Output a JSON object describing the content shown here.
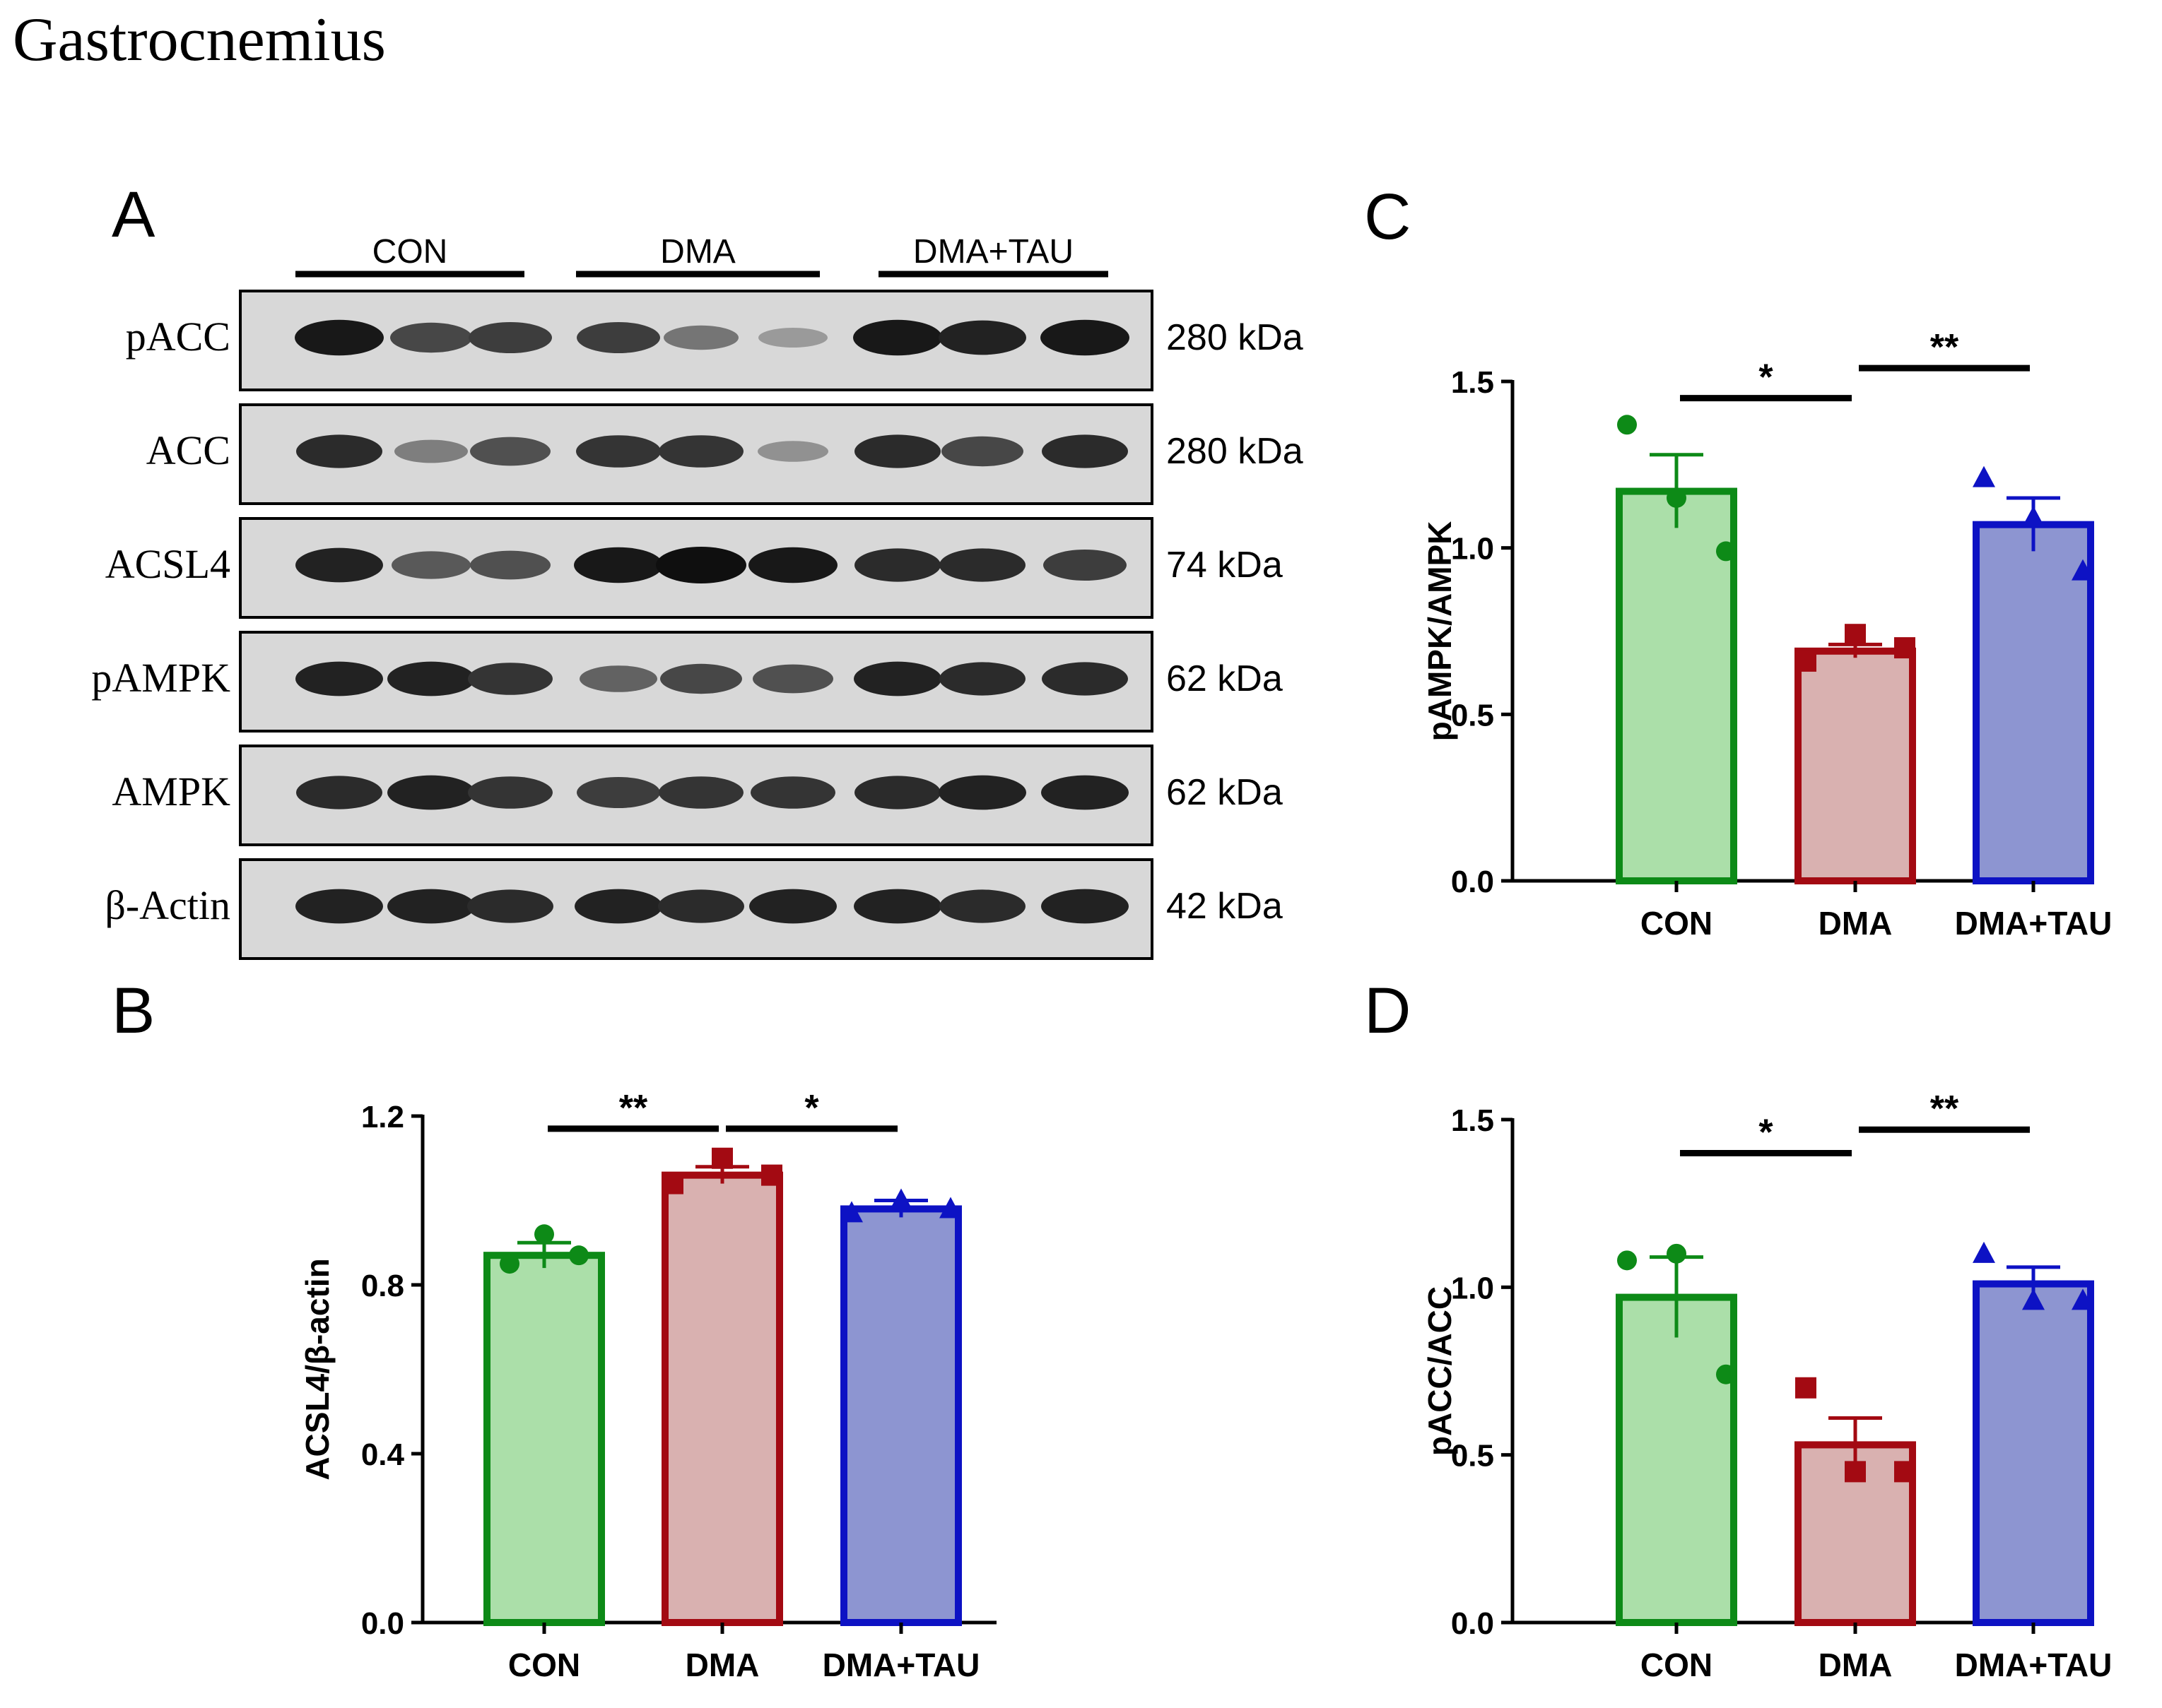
{
  "figure_title": "Gastrocnemius",
  "panel_a": {
    "label": "A",
    "groups": [
      "CON",
      "DMA",
      "DMA+TAU"
    ],
    "blots": [
      {
        "protein": "pACC",
        "size": "280 kDa",
        "intensities": [
          0.95,
          0.7,
          0.75,
          0.75,
          0.45,
          0.25,
          0.95,
          0.9,
          0.95
        ]
      },
      {
        "protein": "ACC",
        "size": "280 kDa",
        "intensities": [
          0.85,
          0.4,
          0.65,
          0.8,
          0.8,
          0.3,
          0.85,
          0.7,
          0.85
        ]
      },
      {
        "protein": "ACSL4",
        "size": "74 kDa",
        "intensities": [
          0.9,
          0.6,
          0.65,
          0.95,
          1.0,
          0.95,
          0.85,
          0.85,
          0.75
        ]
      },
      {
        "protein": "pAMPK",
        "size": "62 kDa",
        "intensities": [
          0.9,
          0.9,
          0.8,
          0.55,
          0.7,
          0.65,
          0.9,
          0.85,
          0.85
        ]
      },
      {
        "protein": "AMPK",
        "size": "62 kDa",
        "intensities": [
          0.85,
          0.9,
          0.8,
          0.75,
          0.8,
          0.8,
          0.85,
          0.9,
          0.9
        ]
      },
      {
        "protein": "β-Actin",
        "size": "42 kDa",
        "intensities": [
          0.9,
          0.9,
          0.85,
          0.9,
          0.85,
          0.9,
          0.9,
          0.85,
          0.9
        ]
      }
    ]
  },
  "colors": {
    "con_fill": "#abdfa9",
    "con_edge": "#0d8a17",
    "dma_fill": "#d9b1b0",
    "dma_edge": "#a30a12",
    "tau_fill": "#8d95d1",
    "tau_edge": "#0d12c4",
    "axis": "#000000"
  },
  "chart_data": [
    {
      "panel": "B",
      "type": "bar",
      "ylabel": "ACSL4/β-actin",
      "categories": [
        "CON",
        "DMA",
        "DMA+TAU"
      ],
      "values": [
        0.87,
        1.06,
        0.98
      ],
      "sem": [
        0.03,
        0.02,
        0.02
      ],
      "points": [
        [
          0.85,
          0.92,
          0.87
        ],
        [
          1.04,
          1.1,
          1.06
        ],
        [
          0.97,
          1.0,
          0.98
        ]
      ],
      "markers": [
        "circle",
        "square",
        "triangle"
      ],
      "ylim": [
        0,
        1.2
      ],
      "yticks": [
        "0.0",
        "0.4",
        "0.8",
        "1.2"
      ],
      "significance": [
        {
          "from": 0,
          "to": 1,
          "label": "**",
          "level": 1.17
        },
        {
          "from": 1,
          "to": 2,
          "label": "*",
          "level": 1.17
        }
      ]
    },
    {
      "panel": "C",
      "type": "bar",
      "ylabel": "pAMPK/AMPK",
      "categories": [
        "CON",
        "DMA",
        "DMA+TAU"
      ],
      "values": [
        1.17,
        0.69,
        1.07
      ],
      "sem": [
        0.11,
        0.02,
        0.08
      ],
      "points": [
        [
          1.37,
          1.15,
          0.99
        ],
        [
          0.66,
          0.74,
          0.7
        ],
        [
          1.21,
          1.09,
          0.93
        ]
      ],
      "markers": [
        "circle",
        "square",
        "triangle"
      ],
      "ylim": [
        0,
        1.5
      ],
      "yticks": [
        "0.0",
        "0.5",
        "1.0",
        "1.5"
      ],
      "significance": [
        {
          "from": 0,
          "to": 1,
          "label": "*",
          "level": 1.45
        },
        {
          "from": 1,
          "to": 2,
          "label": "**",
          "level": 1.54
        }
      ]
    },
    {
      "panel": "D",
      "type": "bar",
      "ylabel": "pACC/ACC",
      "categories": [
        "CON",
        "DMA",
        "DMA+TAU"
      ],
      "values": [
        0.97,
        0.53,
        1.01
      ],
      "sem": [
        0.12,
        0.08,
        0.05
      ],
      "points": [
        [
          1.08,
          1.1,
          0.74
        ],
        [
          0.7,
          0.45,
          0.45
        ],
        [
          1.1,
          0.96,
          0.96
        ]
      ],
      "markers": [
        "circle",
        "square",
        "triangle"
      ],
      "ylim": [
        0,
        1.5
      ],
      "yticks": [
        "0.0",
        "0.5",
        "1.0",
        "1.5"
      ],
      "significance": [
        {
          "from": 0,
          "to": 1,
          "label": "*",
          "level": 1.4
        },
        {
          "from": 1,
          "to": 2,
          "label": "**",
          "level": 1.47
        }
      ]
    }
  ]
}
